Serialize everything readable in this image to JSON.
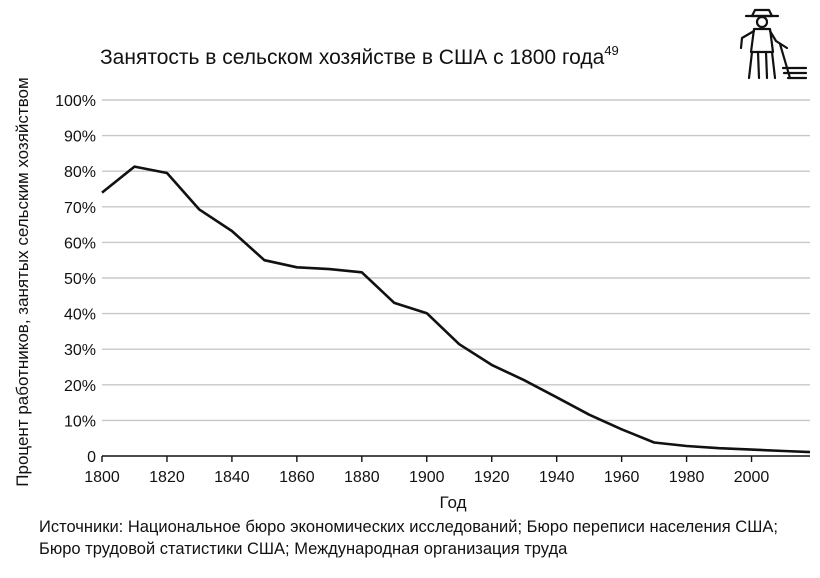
{
  "chart_data": {
    "type": "line",
    "title": "Занятость в сельском хозяйстве в США с 1800 года",
    "title_superscript": "49",
    "xlabel": "Год",
    "ylabel": "Процент работников, занятых сельским хозяйством",
    "xlim": [
      1800,
      2018
    ],
    "ylim": [
      0,
      100
    ],
    "x_ticks": [
      "1800",
      "1820",
      "1840",
      "1860",
      "1880",
      "1900",
      "1920",
      "1940",
      "1960",
      "1980",
      "2000"
    ],
    "y_ticks": [
      "0",
      "10%",
      "20%",
      "30%",
      "40%",
      "50%",
      "60%",
      "70%",
      "80%",
      "90%",
      "100%"
    ],
    "grid": true,
    "series": [
      {
        "x": [
          1800,
          1810,
          1820,
          1830,
          1840,
          1850,
          1860,
          1870,
          1880,
          1890,
          1900,
          1910,
          1920,
          1930,
          1940,
          1950,
          1960,
          1970,
          1980,
          1990,
          2000,
          2010,
          2018
        ],
        "values": [
          74,
          81.3,
          79.5,
          69.2,
          63.2,
          55,
          53,
          52.5,
          51.6,
          43,
          40.1,
          31.4,
          25.6,
          21.3,
          16.5,
          11.6,
          7.5,
          3.8,
          2.8,
          2.2,
          1.8,
          1.4,
          1.1
        ]
      }
    ]
  },
  "source_note": {
    "line1": "Источники: Национальное бюро экономических исследований; Бюро переписи населения США;",
    "line2": "Бюро трудовой статистики США; Международная организация труда"
  },
  "icon": "farmer-with-hoe-icon"
}
